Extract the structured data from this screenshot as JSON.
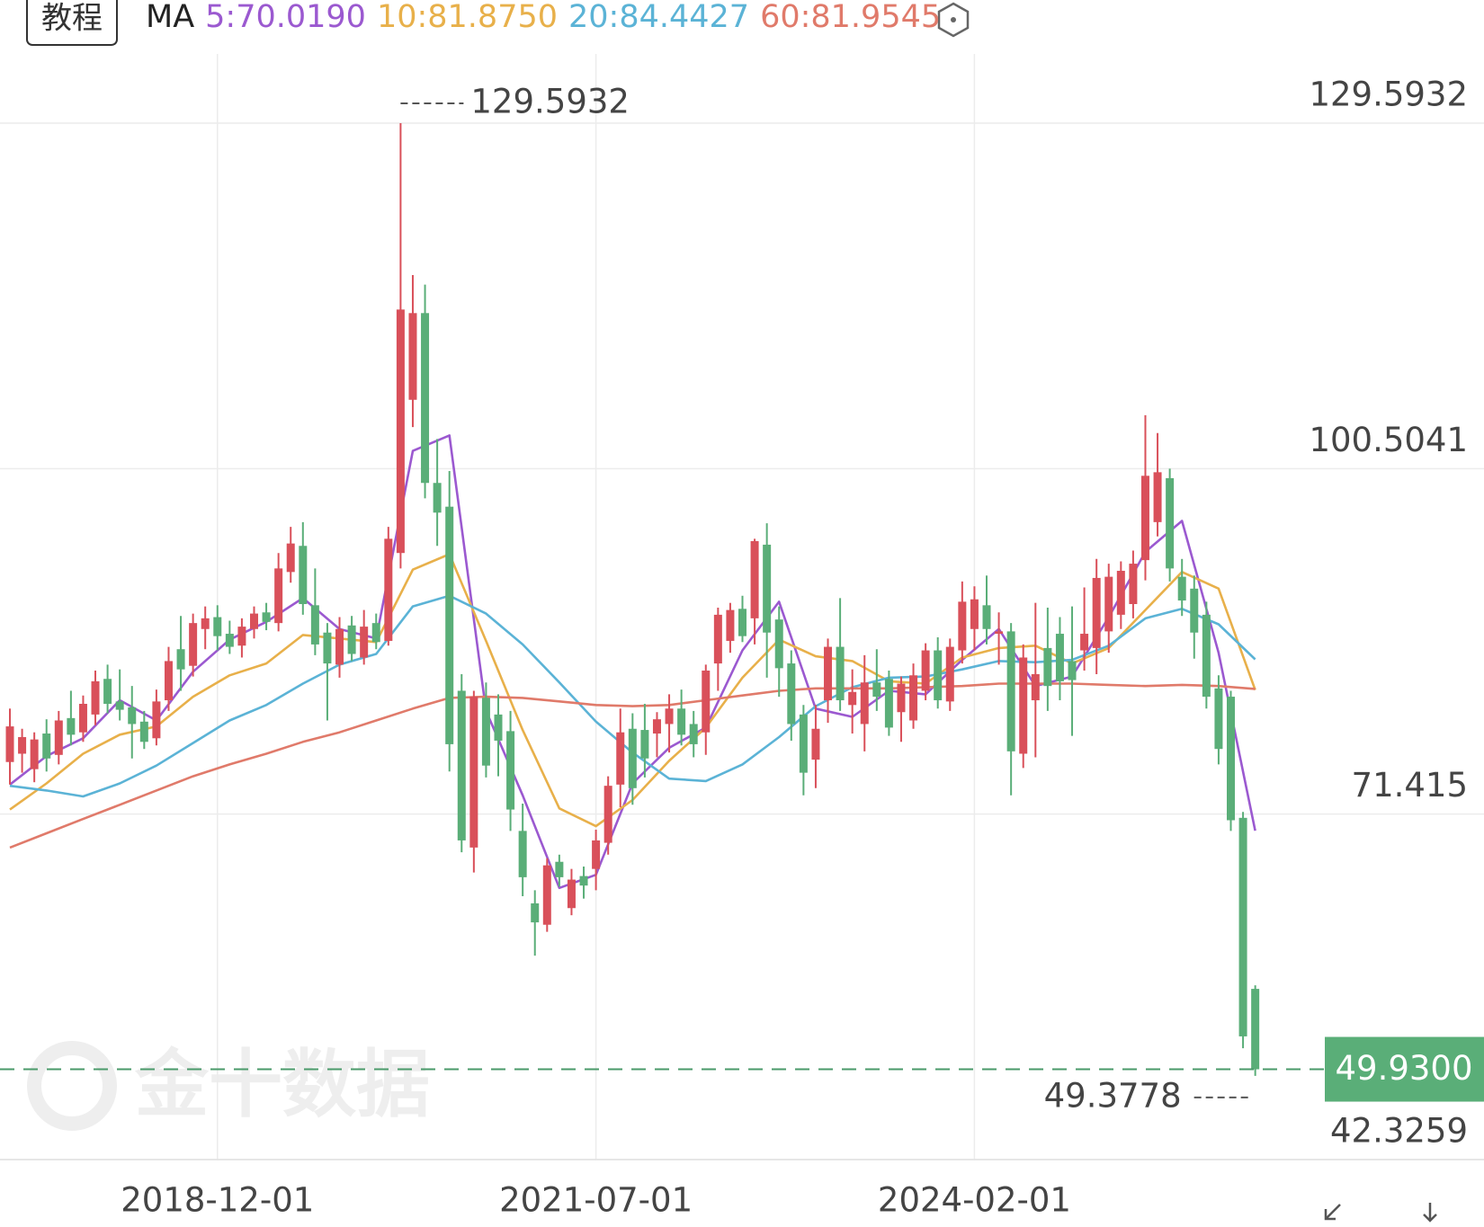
{
  "header": {
    "tutorial": "教程"
  },
  "chart_data": {
    "type": "candlestick",
    "watermark": "金十数据",
    "up_color": "#d9505a",
    "down_color": "#5aae78",
    "ylim": [
      42.3259,
      129.5932
    ],
    "yticks": [
      129.5932,
      100.5041,
      71.415,
      42.3259
    ],
    "xticks": [
      {
        "value": 17,
        "label": "2018-12-01"
      },
      {
        "value": 48,
        "label": "2021-07-01"
      },
      {
        "value": 79,
        "label": "2024-02-01"
      }
    ],
    "grid": true,
    "open": [
      75.8,
      76.5,
      75.2,
      78.2,
      76.4,
      79.5,
      78.3,
      79.8,
      82.8,
      80.9,
      80.4,
      79.2,
      77.8,
      81.0,
      85.3,
      83.9,
      87.0,
      88.0,
      86.6,
      85.6,
      87.0,
      88.4,
      87.5,
      91.8,
      94.0,
      89.0,
      86.7,
      84.0,
      87.3,
      84.6,
      87.5,
      86.0,
      93.4,
      106.3,
      113.6,
      99.3,
      97.3,
      81.8,
      68.6,
      81.2,
      79.8,
      78.4,
      70.0,
      63.9,
      62.1,
      67.4,
      63.5,
      66.2,
      66.8,
      69.0,
      73.9,
      78.6,
      78.5,
      78.2,
      79.0,
      80.3,
      79.0,
      78.3,
      84.1,
      86.0,
      88.7,
      87.9,
      94.1,
      87.8,
      84.1,
      79.8,
      76.0,
      81.0,
      85.5,
      80.6,
      79.0,
      82.5,
      82.8,
      80.0,
      79.3,
      81.8,
      85.2,
      80.9,
      85.2,
      87.0,
      89.0,
      86.6,
      86.8,
      76.5,
      81.0,
      85.4,
      86.6,
      84.3,
      85.2,
      85.4,
      86.8,
      88.2,
      89.1,
      92.8,
      96.0,
      99.7,
      91.4,
      90.4,
      88.2,
      82.0,
      81.3,
      71.1,
      56.7
    ],
    "high": [
      80.3,
      78.6,
      78.3,
      79.4,
      80.1,
      81.8,
      81.4,
      83.5,
      84.0,
      83.6,
      82.2,
      80.1,
      81.9,
      85.5,
      88.1,
      88.3,
      88.9,
      89.0,
      87.7,
      87.9,
      88.9,
      89.2,
      93.4,
      95.6,
      96.0,
      92.1,
      87.5,
      88.0,
      88.1,
      88.6,
      88.3,
      95.6,
      129.5932,
      116.8,
      116.0,
      103.0,
      100.3,
      83.2,
      81.8,
      82.5,
      81.5,
      80.1,
      72.3,
      65.0,
      67.7,
      68.0,
      66.8,
      67.0,
      70.1,
      74.6,
      80.3,
      79.9,
      80.7,
      80.0,
      81.5,
      81.9,
      80.1,
      84.0,
      88.8,
      89.2,
      89.8,
      94.6,
      95.9,
      88.9,
      85.2,
      80.6,
      80.6,
      86.2,
      89.6,
      83.6,
      84.8,
      85.3,
      83.5,
      83.0,
      84.1,
      85.8,
      86.3,
      86.2,
      91.0,
      90.6,
      91.5,
      88.4,
      87.5,
      85.7,
      89.2,
      88.8,
      88.0,
      88.9,
      90.5,
      92.9,
      92.5,
      92.7,
      93.6,
      105.0,
      103.5,
      100.5,
      92.9,
      91.5,
      89.3,
      83.1,
      81.8,
      71.6,
      57.0
    ],
    "low": [
      73.9,
      74.9,
      74.1,
      75.0,
      75.6,
      77.2,
      77.5,
      78.9,
      79.9,
      79.3,
      76.1,
      76.9,
      77.2,
      80.1,
      81.8,
      83.0,
      85.3,
      85.2,
      84.9,
      84.6,
      86.2,
      86.9,
      86.8,
      90.9,
      88.2,
      84.8,
      79.3,
      82.9,
      84.3,
      84.0,
      85.3,
      85.6,
      92.1,
      104.0,
      98.0,
      94.0,
      75.0,
      68.2,
      66.5,
      74.5,
      74.6,
      70.0,
      64.5,
      59.5,
      61.5,
      65.3,
      62.9,
      64.3,
      65.0,
      68.0,
      72.0,
      72.2,
      74.5,
      76.2,
      76.6,
      77.2,
      76.2,
      76.4,
      81.8,
      85.0,
      85.9,
      85.7,
      82.9,
      81.3,
      77.6,
      73.0,
      73.6,
      79.1,
      80.1,
      78.2,
      76.7,
      80.1,
      78.0,
      77.5,
      78.6,
      81.0,
      80.3,
      80.1,
      84.1,
      85.2,
      85.7,
      84.0,
      73.0,
      75.3,
      76.2,
      80.1,
      81.0,
      78.0,
      83.5,
      83.2,
      85.0,
      87.0,
      87.9,
      91.1,
      94.8,
      91.0,
      88.1,
      84.5,
      80.3,
      75.6,
      70.0,
      51.7,
      49.3778
    ],
    "close": [
      78.8,
      77.9,
      77.7,
      76.1,
      79.3,
      78.1,
      80.7,
      82.6,
      80.7,
      80.2,
      79.0,
      77.5,
      80.9,
      84.3,
      83.6,
      87.5,
      87.9,
      86.4,
      85.5,
      87.2,
      88.3,
      87.6,
      92.1,
      94.2,
      89.1,
      85.7,
      84.1,
      87.0,
      84.9,
      87.2,
      85.9,
      94.6,
      113.9,
      113.6,
      99.3,
      96.8,
      77.3,
      69.2,
      81.3,
      75.5,
      77.6,
      71.8,
      66.1,
      62.3,
      67.1,
      66.1,
      65.9,
      65.4,
      69.2,
      73.8,
      78.3,
      73.6,
      76.1,
      79.4,
      80.3,
      78.1,
      77.3,
      83.5,
      88.2,
      88.6,
      86.4,
      94.4,
      86.7,
      83.7,
      79.0,
      74.9,
      78.6,
      85.5,
      81.0,
      81.7,
      82.5,
      81.3,
      78.7,
      82.4,
      83.1,
      85.2,
      81.0,
      85.5,
      89.3,
      89.5,
      87.0,
      86.8,
      76.7,
      84.6,
      83.2,
      82.2,
      82.6,
      82.7,
      86.6,
      91.3,
      91.4,
      91.9,
      92.5,
      99.9,
      100.2,
      92.1,
      89.4,
      86.7,
      81.3,
      76.9,
      70.9,
      52.7,
      49.93
    ],
    "max_index": 32,
    "min_index": 102,
    "last_price": {
      "value": 49.93,
      "label": "49.9300"
    },
    "ma_title": "MA",
    "ma": [
      {
        "name": "5:70.0190",
        "color": "#9b59d0",
        "x": [
          0,
          3,
          6,
          9,
          12,
          15,
          18,
          21,
          24,
          27,
          30,
          33,
          36,
          39,
          42,
          45,
          48,
          51,
          54,
          57,
          60,
          63,
          66,
          69,
          72,
          75,
          78,
          81,
          84,
          87,
          90,
          93,
          96,
          99,
          102
        ],
        "values": [
          73.9,
          76.3,
          77.8,
          81.0,
          79.3,
          83.4,
          86.1,
          87.6,
          89.6,
          87.0,
          86.2,
          102.0,
          103.3,
          80.1,
          73.0,
          65.2,
          66.3,
          74.0,
          77.0,
          78.7,
          85.2,
          89.3,
          80.3,
          79.6,
          81.8,
          81.5,
          84.4,
          87.0,
          82.2,
          83.0,
          88.0,
          93.5,
          96.1,
          85.0,
          70.019
        ]
      },
      {
        "name": "10:81.8750",
        "color": "#e8b04a",
        "x": [
          0,
          3,
          6,
          9,
          12,
          15,
          18,
          21,
          24,
          27,
          30,
          33,
          36,
          39,
          42,
          45,
          48,
          51,
          54,
          57,
          60,
          63,
          66,
          69,
          72,
          75,
          78,
          81,
          84,
          87,
          90,
          93,
          96,
          99,
          102
        ],
        "values": [
          71.8,
          74.0,
          76.5,
          78.1,
          78.8,
          81.3,
          83.1,
          84.1,
          86.5,
          86.2,
          85.9,
          92.0,
          93.3,
          86.0,
          78.5,
          71.9,
          70.4,
          72.6,
          75.9,
          78.7,
          82.9,
          86.1,
          84.7,
          84.3,
          82.6,
          82.4,
          84.6,
          85.4,
          85.6,
          84.1,
          85.4,
          88.6,
          91.8,
          90.4,
          81.875
        ]
      },
      {
        "name": "20:84.4427",
        "color": "#5bb3d6",
        "x": [
          0,
          3,
          6,
          9,
          12,
          15,
          18,
          21,
          24,
          27,
          30,
          33,
          36,
          39,
          42,
          45,
          48,
          51,
          54,
          57,
          60,
          63,
          66,
          69,
          72,
          75,
          78,
          81,
          84,
          87,
          90,
          93,
          96,
          99,
          102
        ],
        "values": [
          73.8,
          73.4,
          72.9,
          74.0,
          75.5,
          77.4,
          79.3,
          80.6,
          82.4,
          84.0,
          84.9,
          88.9,
          89.8,
          88.3,
          85.7,
          82.5,
          79.2,
          76.6,
          74.4,
          74.2,
          75.6,
          77.9,
          80.5,
          82.1,
          82.9,
          83.0,
          83.6,
          84.3,
          84.2,
          84.4,
          85.6,
          87.9,
          88.7,
          87.4,
          84.4427
        ]
      },
      {
        "name": "60:81.9545",
        "color": "#e07a6a",
        "x": [
          0,
          3,
          6,
          9,
          12,
          15,
          18,
          21,
          24,
          27,
          30,
          33,
          36,
          39,
          42,
          45,
          48,
          51,
          54,
          57,
          60,
          63,
          66,
          69,
          72,
          75,
          78,
          81,
          84,
          87,
          90,
          93,
          96,
          99,
          102
        ],
        "values": [
          68.6,
          69.8,
          71.0,
          72.2,
          73.4,
          74.6,
          75.6,
          76.5,
          77.5,
          78.3,
          79.3,
          80.3,
          81.2,
          81.3,
          81.2,
          80.9,
          80.6,
          80.5,
          80.6,
          81.0,
          81.4,
          81.8,
          82.0,
          82.0,
          82.0,
          82.1,
          82.2,
          82.4,
          82.4,
          82.4,
          82.3,
          82.2,
          82.3,
          82.2,
          81.9545
        ]
      }
    ]
  }
}
